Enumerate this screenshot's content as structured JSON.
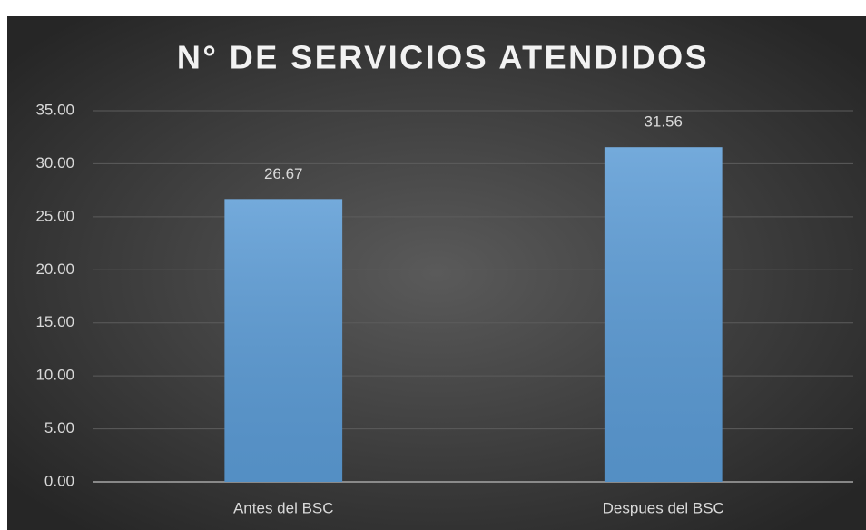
{
  "chart_data": {
    "type": "bar",
    "title": "N° DE SERVICIOS ATENDIDOS",
    "categories": [
      "Antes del BSC",
      "Despues del BSC"
    ],
    "values": [
      26.67,
      31.56
    ],
    "color": "#5b9bd5",
    "ylim": [
      0,
      35
    ],
    "yticks": [
      {
        "value": 0,
        "label": "0.00"
      },
      {
        "value": 5,
        "label": "5.00"
      },
      {
        "value": 10,
        "label": "10.00"
      },
      {
        "value": 15,
        "label": "15.00"
      },
      {
        "value": 20,
        "label": "20.00"
      },
      {
        "value": 25,
        "label": "25.00"
      },
      {
        "value": 30,
        "label": "30.00"
      },
      {
        "value": 35,
        "label": "35.00"
      }
    ],
    "grid": true
  }
}
